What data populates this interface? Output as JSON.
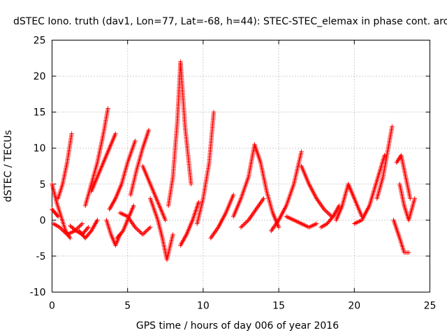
{
  "chart_data": {
    "type": "scatter",
    "title": "dSTEC Iono. truth (dav1, Lon=77, Lat=-68, h=44): STEC-STEC_elemax in phase cont. arc",
    "xlabel": "GPS time / hours of day 006 of year 2016",
    "ylabel": "dSTEC  / TECUs",
    "xlim": [
      0,
      25
    ],
    "ylim": [
      -10,
      25
    ],
    "x_ticks": [
      "0",
      "5",
      "10",
      "15",
      "20",
      "25"
    ],
    "y_ticks": [
      "-10",
      "-5",
      "0",
      "5",
      "10",
      "15",
      "20",
      "25"
    ],
    "grid": true,
    "marker": "+",
    "series_color": "#ff0000",
    "arcs": [
      {
        "x": [
          0.0,
          0.3,
          0.6,
          0.9,
          1.2
        ],
        "y": [
          5.0,
          2.5,
          0.5,
          -1.5,
          -2.5
        ]
      },
      {
        "x": [
          0.4,
          0.7,
          1.0,
          1.3
        ],
        "y": [
          3.0,
          5.0,
          8.0,
          12.0
        ]
      },
      {
        "x": [
          0.1,
          0.5,
          1.0,
          1.5,
          2.0
        ],
        "y": [
          -0.5,
          -1.0,
          -2.0,
          -1.5,
          -0.5
        ]
      },
      {
        "x": [
          1.2,
          1.6,
          2.0,
          2.4
        ],
        "y": [
          -0.8,
          -1.5,
          -2.0,
          -1.0
        ]
      },
      {
        "x": [
          2.2,
          2.6,
          3.0,
          3.4,
          3.7
        ],
        "y": [
          2.0,
          5.0,
          8.0,
          12.0,
          15.5
        ]
      },
      {
        "x": [
          1.8,
          2.2,
          2.6,
          3.0
        ],
        "y": [
          -1.5,
          -2.5,
          -1.5,
          0.0
        ]
      },
      {
        "x": [
          3.6,
          3.9,
          4.2,
          4.5
        ],
        "y": [
          0.0,
          -2.0,
          -3.5,
          -2.0
        ]
      },
      {
        "x": [
          2.6,
          3.0,
          3.4,
          3.8,
          4.2
        ],
        "y": [
          4.0,
          6.0,
          8.0,
          10.0,
          12.0
        ]
      },
      {
        "x": [
          3.8,
          4.2,
          4.6,
          5.0,
          5.5
        ],
        "y": [
          1.5,
          3.0,
          5.0,
          8.0,
          11.0
        ]
      },
      {
        "x": [
          4.3,
          4.7,
          5.0,
          5.4
        ],
        "y": [
          -2.5,
          -1.5,
          0.0,
          2.0
        ]
      },
      {
        "x": [
          5.2,
          5.6,
          6.0,
          6.4
        ],
        "y": [
          3.5,
          7.0,
          10.0,
          12.5
        ]
      },
      {
        "x": [
          6.5,
          7.0,
          7.3,
          7.6,
          8.0
        ],
        "y": [
          3.0,
          0.0,
          -2.5,
          -5.5,
          -2.0
        ]
      },
      {
        "x": [
          4.5,
          5.0,
          5.5,
          6.0,
          6.5
        ],
        "y": [
          1.0,
          0.5,
          -1.0,
          -2.0,
          -1.0
        ]
      },
      {
        "x": [
          6.0,
          6.5,
          7.0,
          7.5
        ],
        "y": [
          7.5,
          5.0,
          2.5,
          0.0
        ]
      },
      {
        "x": [
          7.7,
          8.0,
          8.3,
          8.5,
          8.8,
          9.2
        ],
        "y": [
          2.0,
          6.0,
          14.0,
          22.0,
          13.0,
          5.0
        ]
      },
      {
        "x": [
          8.5,
          8.9,
          9.3,
          9.7
        ],
        "y": [
          -3.5,
          -2.0,
          0.0,
          2.5
        ]
      },
      {
        "x": [
          9.6,
          10.0,
          10.4,
          10.7
        ],
        "y": [
          -0.5,
          3.0,
          8.0,
          15.0
        ]
      },
      {
        "x": [
          10.5,
          11.0,
          11.5,
          12.0
        ],
        "y": [
          -2.5,
          -1.0,
          1.0,
          3.5
        ]
      },
      {
        "x": [
          12.0,
          12.5,
          13.0,
          13.4
        ],
        "y": [
          0.5,
          3.0,
          6.0,
          10.5
        ]
      },
      {
        "x": [
          13.4,
          13.8,
          14.2,
          14.6,
          15.0
        ],
        "y": [
          10.5,
          8.0,
          4.0,
          1.0,
          -1.0
        ]
      },
      {
        "x": [
          12.5,
          13.0,
          13.5,
          14.0
        ],
        "y": [
          -1.0,
          0.0,
          1.5,
          3.0
        ]
      },
      {
        "x": [
          14.5,
          15.0,
          15.5,
          16.0,
          16.5
        ],
        "y": [
          -1.5,
          0.0,
          2.0,
          5.0,
          9.5
        ]
      },
      {
        "x": [
          15.5,
          16.0,
          16.5,
          17.0,
          17.5
        ],
        "y": [
          0.5,
          0.0,
          -0.5,
          -1.0,
          -0.5
        ]
      },
      {
        "x": [
          16.5,
          17.0,
          17.5,
          18.0,
          18.5
        ],
        "y": [
          7.5,
          5.0,
          3.0,
          1.5,
          0.5
        ]
      },
      {
        "x": [
          17.8,
          18.2,
          18.6,
          19.0
        ],
        "y": [
          -1.0,
          -0.5,
          0.5,
          2.0
        ]
      },
      {
        "x": [
          18.8,
          19.2,
          19.6,
          20.0,
          20.5
        ],
        "y": [
          0.0,
          2.0,
          5.0,
          3.0,
          0.5
        ]
      },
      {
        "x": [
          20.0,
          20.5,
          21.0,
          21.5,
          22.0
        ],
        "y": [
          -0.5,
          0.0,
          2.0,
          5.5,
          9.0
        ]
      },
      {
        "x": [
          21.5,
          21.9,
          22.2,
          22.5
        ],
        "y": [
          3.0,
          6.0,
          9.5,
          13.0
        ]
      },
      {
        "x": [
          22.6,
          23.0,
          23.3,
          23.6
        ],
        "y": [
          0.0,
          -2.5,
          -4.5,
          -4.5
        ]
      },
      {
        "x": [
          22.8,
          23.1,
          23.4,
          23.7
        ],
        "y": [
          8.0,
          9.0,
          6.0,
          3.0
        ]
      },
      {
        "x": [
          23.0,
          23.3,
          23.6,
          24.0
        ],
        "y": [
          5.0,
          2.0,
          0.0,
          3.0
        ]
      },
      {
        "x": [
          0.0,
          0.2,
          0.4
        ],
        "y": [
          1.5,
          1.0,
          0.5
        ]
      }
    ]
  }
}
